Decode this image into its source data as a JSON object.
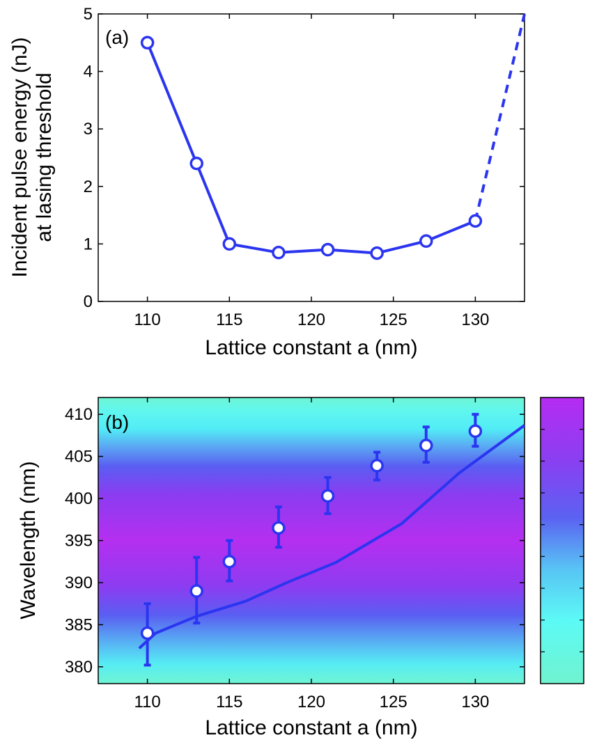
{
  "chart_data": [
    {
      "type": "line",
      "panel_label": "(a)",
      "xlabel": "Lattice constant a (nm)",
      "ylabel_line1": "Incident pulse energy (nJ)",
      "ylabel_line2": "at lasing threshold",
      "xlim": [
        107,
        133
      ],
      "ylim": [
        0,
        5
      ],
      "xticks": [
        110,
        115,
        120,
        125,
        130
      ],
      "yticks": [
        0,
        1,
        2,
        3,
        4,
        5
      ],
      "series": [
        {
          "name": "threshold",
          "x": [
            110,
            113,
            115,
            118,
            121,
            124,
            127,
            130
          ],
          "y": [
            4.5,
            2.4,
            1.0,
            0.85,
            0.9,
            0.84,
            1.05,
            1.4
          ]
        }
      ],
      "extrapolation": {
        "x": [
          130,
          133
        ],
        "y": [
          1.4,
          5.0
        ],
        "style": "dashed"
      },
      "color": "#2b35f0"
    },
    {
      "type": "scatter",
      "panel_label": "(b)",
      "xlabel": "Lattice constant a (nm)",
      "ylabel": "Wavelength (nm)",
      "xlim": [
        107,
        133
      ],
      "ylim": [
        378,
        412
      ],
      "xticks": [
        110,
        115,
        120,
        125,
        130
      ],
      "yticks": [
        380,
        385,
        390,
        395,
        400,
        405,
        410
      ],
      "points": {
        "x": [
          110,
          113,
          115,
          118,
          121,
          124,
          127,
          130
        ],
        "y": [
          384.0,
          389.0,
          392.5,
          396.5,
          400.3,
          403.9,
          406.3,
          408.0
        ],
        "err_low": [
          380.2,
          385.2,
          390.2,
          394.2,
          398.2,
          402.2,
          404.3,
          406.2
        ],
        "err_high": [
          387.5,
          393.0,
          395.0,
          399.0,
          402.5,
          405.5,
          408.5,
          410.0
        ]
      },
      "line": {
        "x": [
          109.5,
          110.5,
          113,
          116,
          118.5,
          121.5,
          125.5,
          129,
          133
        ],
        "y": [
          382.2,
          384.0,
          386.0,
          387.8,
          390.0,
          392.4,
          397.0,
          403.0,
          408.7
        ]
      },
      "background": "spectral intensity map",
      "color": "#2b35f0"
    }
  ],
  "colors": {
    "series": "#2b35f0",
    "marker_fill": "#ffffff",
    "map_low": "#6bf5d6",
    "map_mid": "#5a5ff0",
    "map_high": "#b733f0"
  }
}
